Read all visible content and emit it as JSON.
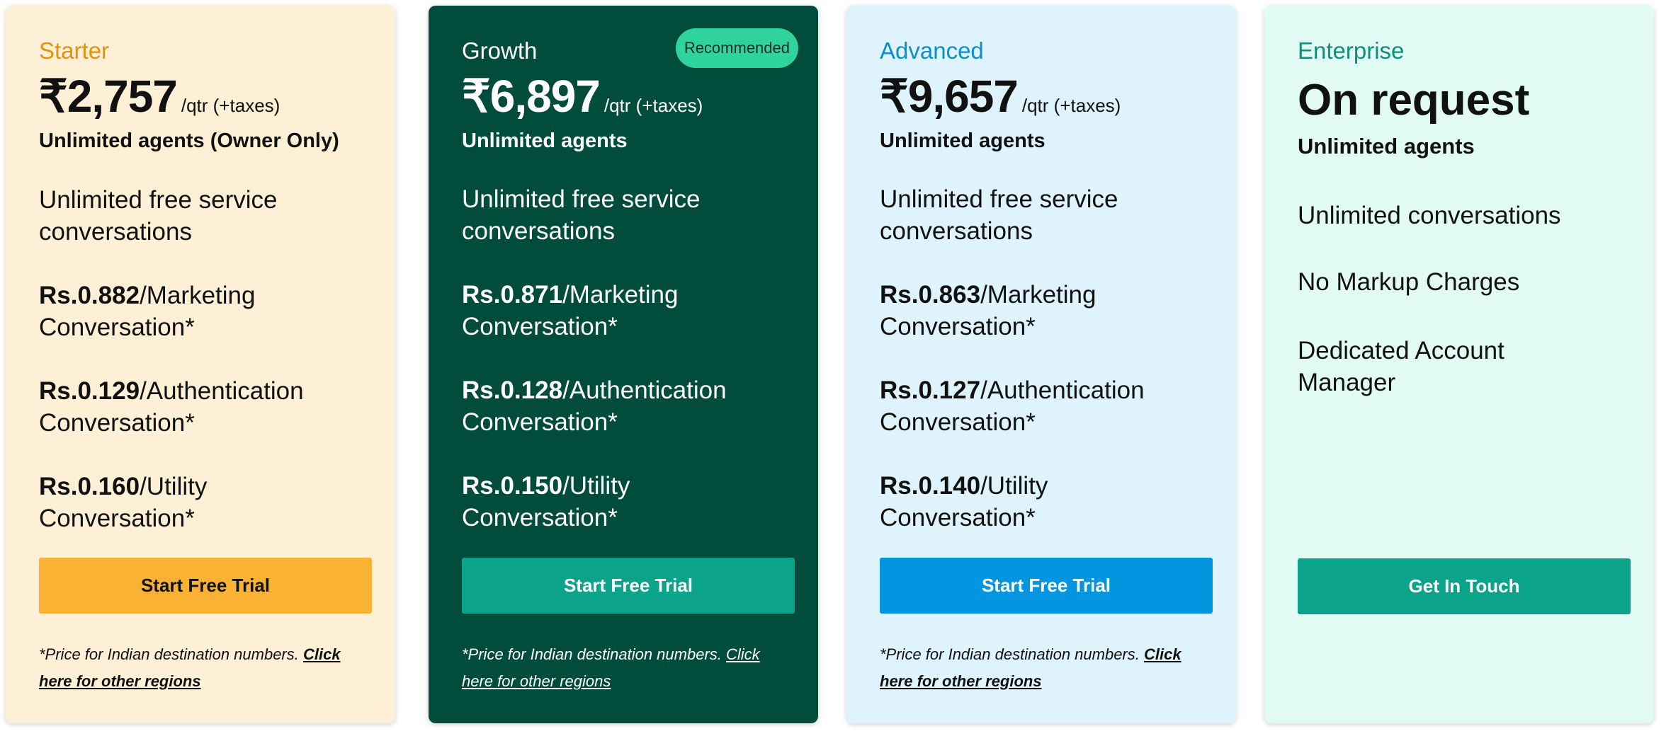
{
  "plans": [
    {
      "name": "Starter",
      "price": "₹2,757",
      "per": "/qtr (+taxes)",
      "agents": "Unlimited agents (Owner Only)",
      "features": [
        {
          "bold": "",
          "text": "Unlimited free service conversations"
        },
        {
          "bold": "Rs.0.882",
          "text": "/Marketing Conversation*"
        },
        {
          "bold": "Rs.0.129",
          "text": "/Authentication Conversation*"
        },
        {
          "bold": "Rs.0.160",
          "text": "/Utility Conversation*"
        }
      ],
      "button": "Start Free Trial",
      "note": "*Price for Indian destination numbers.",
      "note_link": "Click here for other regions"
    },
    {
      "name": "Growth",
      "badge": "Recommended",
      "price": "₹6,897",
      "per": "/qtr (+taxes)",
      "agents": "Unlimited agents",
      "features": [
        {
          "bold": "",
          "text": "Unlimited free service conversations"
        },
        {
          "bold": "Rs.0.871",
          "text": "/Marketing Conversation*"
        },
        {
          "bold": "Rs.0.128",
          "text": "/Authentication Conversation*"
        },
        {
          "bold": "Rs.0.150",
          "text": "/Utility Conversation*"
        }
      ],
      "button": "Start Free Trial",
      "note": "*Price for Indian destination numbers.",
      "note_link": "Click here for other regions"
    },
    {
      "name": "Advanced",
      "price": "₹9,657",
      "per": "/qtr (+taxes)",
      "agents": "Unlimited agents",
      "features": [
        {
          "bold": "",
          "text": "Unlimited free service conversations"
        },
        {
          "bold": "Rs.0.863",
          "text": "/Marketing Conversation*"
        },
        {
          "bold": "Rs.0.127",
          "text": "/Authentication Conversation*"
        },
        {
          "bold": "Rs.0.140",
          "text": "/Utility Conversation*"
        }
      ],
      "button": "Start Free Trial",
      "note": "*Price for Indian destination numbers.",
      "note_link": "Click here for other regions"
    },
    {
      "name": "Enterprise",
      "price": "On request",
      "agents": "Unlimited agents",
      "features": [
        {
          "bold": "",
          "text": "Unlimited conversations"
        },
        {
          "bold": "",
          "text": "No Markup Charges"
        },
        {
          "bold": "",
          "text": "Dedicated Account Manager"
        }
      ],
      "button": "Get In Touch"
    }
  ],
  "colors": {
    "starter_bg": "#fdf0d7",
    "starter_accent": "#f9b233",
    "growth_bg": "#024c3b",
    "growth_button": "#0ba38a",
    "badge_bg": "#2fd39d",
    "advanced_bg": "#dff3fd",
    "advanced_button": "#0495e0",
    "enterprise_bg": "#e1fbf4",
    "enterprise_button": "#0ba38a"
  }
}
